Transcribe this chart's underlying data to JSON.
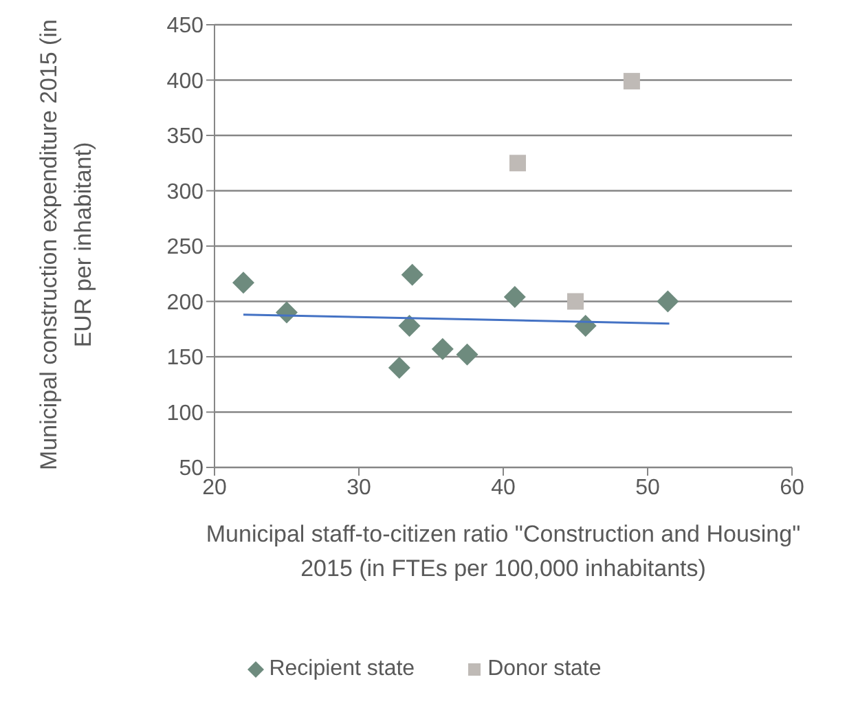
{
  "chart_data": {
    "type": "scatter",
    "xlabel": "Municipal staff-to-citizen ratio \"Construction and Housing\" 2015 (in FTEs per 100,000 inhabitants)",
    "ylabel": "Municipal construction expenditure 2015 (in EUR per inhabitant)",
    "xlim": [
      20,
      60
    ],
    "xticks": [
      20,
      30,
      40,
      50,
      60
    ],
    "ylim": [
      50,
      450
    ],
    "yticks": [
      50,
      100,
      150,
      200,
      250,
      300,
      350,
      400,
      450
    ],
    "grid": "y",
    "legend": "bottom",
    "series": [
      {
        "name": "Recipient state",
        "color": "#6e8b7e",
        "marker": "diamond",
        "x": [
          22,
          25,
          32.8,
          33.5,
          33.7,
          35.8,
          37.5,
          40.8,
          45.7,
          51.4
        ],
        "values": [
          217,
          190,
          140,
          178,
          224,
          157,
          152,
          204,
          178,
          200
        ]
      },
      {
        "name": "Donor state",
        "color": "#bfbab6",
        "marker": "square",
        "x": [
          41,
          45,
          48.9
        ],
        "values": [
          325,
          200,
          399
        ]
      },
      {
        "type": "line",
        "color": "#4472c4",
        "marker": "none",
        "x": [
          22,
          51.5
        ],
        "values": [
          188,
          180
        ]
      }
    ]
  }
}
